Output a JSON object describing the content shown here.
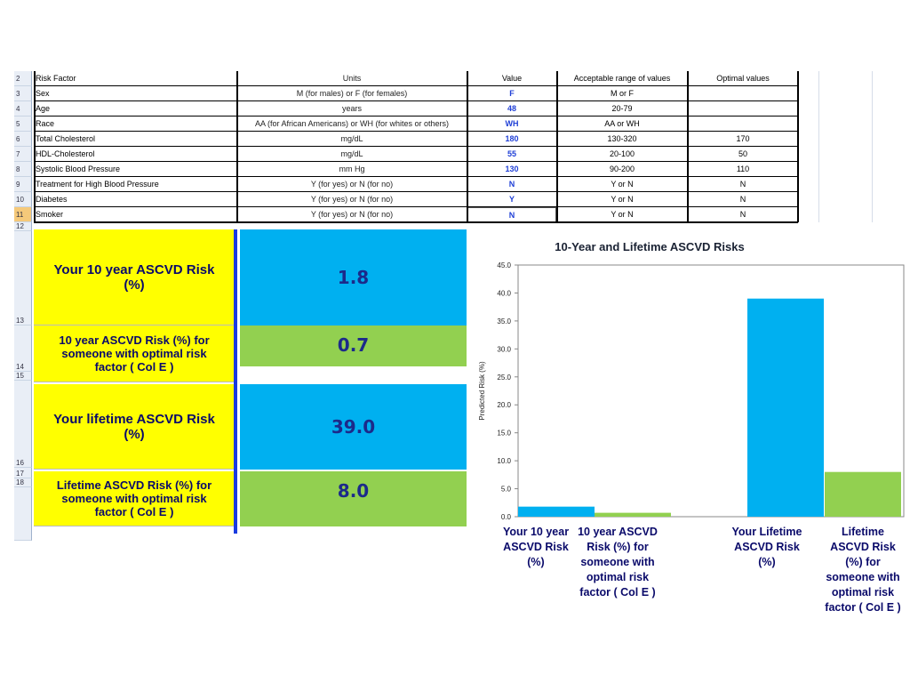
{
  "table": {
    "columns": {
      "row_label": "2",
      "risk_factor": "Risk Factor",
      "units": "Units",
      "value": "Value",
      "acceptable": "Acceptable range of values",
      "optimal": "Optimal values"
    },
    "rows": [
      {
        "n": "3",
        "factor": "Sex",
        "units": "M (for males) or F (for females)",
        "value": "F",
        "acceptable": "M or F",
        "optimal": ""
      },
      {
        "n": "4",
        "factor": "Age",
        "units": "years",
        "value": "48",
        "acceptable": "20-79",
        "optimal": ""
      },
      {
        "n": "5",
        "factor": "Race",
        "units": "AA (for African Americans) or WH (for whites or others)",
        "value": "WH",
        "acceptable": "AA or WH",
        "optimal": ""
      },
      {
        "n": "6",
        "factor": "Total Cholesterol",
        "units": "mg/dL",
        "value": "180",
        "acceptable": "130-320",
        "optimal": "170"
      },
      {
        "n": "7",
        "factor": "HDL-Cholesterol",
        "units": "mg/dL",
        "value": "55",
        "acceptable": "20-100",
        "optimal": "50"
      },
      {
        "n": "8",
        "factor": "Systolic Blood Pressure",
        "units": "mm Hg",
        "value": "130",
        "acceptable": "90-200",
        "optimal": "110"
      },
      {
        "n": "9",
        "factor": "Treatment for High Blood Pressure",
        "units": "Y (for yes) or N (for no)",
        "value": "N",
        "acceptable": "Y or N",
        "optimal": "N"
      },
      {
        "n": "10",
        "factor": "Diabetes",
        "units": "Y (for yes) or N (for no)",
        "value": "Y",
        "acceptable": "Y or N",
        "optimal": "N"
      },
      {
        "n": "11",
        "factor": "Smoker",
        "units": "Y (for yes) or N (for no)",
        "value": "N",
        "acceptable": "Y or N",
        "optimal": "N"
      }
    ],
    "extra_row_numbers": [
      "12",
      "13",
      "14",
      "15",
      "16",
      "17",
      "18"
    ]
  },
  "results": [
    {
      "label": "Your 10 year ASCVD Risk (%)",
      "value": "1.8"
    },
    {
      "label": "10 year ASCVD Risk (%) for someone with optimal risk factor ( Col E )",
      "value": "0.7"
    },
    {
      "label": "Your  lifetime ASCVD Risk (%)",
      "value": "39.0"
    },
    {
      "label": "Lifetime ASCVD Risk (%) for someone with optimal risk factor ( Col E )",
      "value": "8.0"
    }
  ],
  "colors": {
    "yellow": "#ffff00",
    "blue": "#00b0f0",
    "green": "#92d050",
    "value_text": "#1f3fd6"
  },
  "chart_data": {
    "type": "bar",
    "title": "10-Year and Lifetime ASCVD Risks",
    "ylabel": "Predicted Risk (%)",
    "ylim": [
      0,
      45
    ],
    "yticks": [
      "0.0",
      "5.0",
      "10.0",
      "15.0",
      "20.0",
      "25.0",
      "30.0",
      "35.0",
      "40.0",
      "45.0"
    ],
    "grid": false,
    "categories": [
      "Your 10 year ASCVD Risk (%)",
      "10 year ASCVD Risk (%) for someone with optimal risk factor ( Col E )",
      "Your Lifetime ASCVD Risk (%)",
      "Lifetime ASCVD Risk (%) for someone with optimal risk factor ( Col E )"
    ],
    "values": [
      1.8,
      0.7,
      39.0,
      8.0
    ],
    "bar_colors": [
      "#00b0f0",
      "#92d050",
      "#00b0f0",
      "#92d050"
    ]
  }
}
